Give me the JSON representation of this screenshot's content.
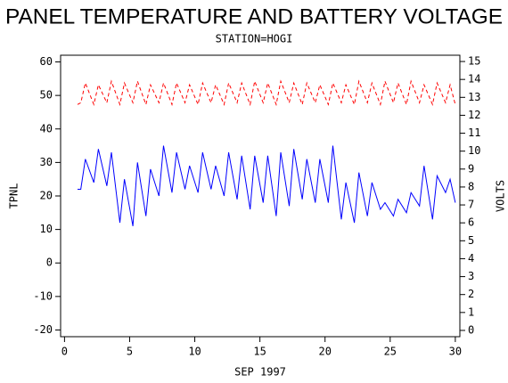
{
  "chart_data": {
    "type": "line",
    "title": "PANEL TEMPERATURE AND BATTERY VOLTAGE",
    "subtitle": "STATION=HOGI",
    "x_label": "SEP 1997",
    "y_label": "TPNL",
    "y2_label": "VOLTS",
    "x": [
      1,
      1.25,
      1.6,
      2.25,
      2.6,
      3.25,
      3.6,
      4.25,
      4.6,
      5.25,
      5.6,
      6.25,
      6.6,
      7.25,
      7.6,
      8.25,
      8.6,
      9.25,
      9.6,
      10.25,
      10.6,
      11.25,
      11.6,
      12.25,
      12.6,
      13.25,
      13.6,
      14.25,
      14.6,
      15.25,
      15.6,
      16.25,
      16.6,
      17.25,
      17.6,
      18.25,
      18.6,
      19.25,
      19.6,
      20.25,
      20.6,
      21.25,
      21.6,
      22.25,
      22.6,
      23.25,
      23.6,
      24.25,
      24.6,
      25.25,
      25.6,
      26.25,
      26.6,
      27.25,
      27.6,
      28.25,
      28.6,
      29.25,
      29.6,
      30
    ],
    "series": [
      {
        "name": "TPNL",
        "color": "#0000ff",
        "dashed": false,
        "axis": "y",
        "values": [
          22,
          22,
          31,
          24,
          34,
          23,
          33,
          12,
          25,
          11,
          30,
          14,
          28,
          20,
          35,
          21,
          33,
          22,
          29,
          21,
          33,
          22,
          29,
          20,
          33,
          19,
          32,
          16,
          32,
          18,
          32,
          14,
          33,
          17,
          34,
          19,
          31,
          18,
          31,
          18,
          35,
          13,
          24,
          12,
          27,
          14,
          24,
          16,
          18,
          14,
          19,
          15,
          21,
          17,
          29,
          13,
          26,
          21,
          25,
          18
        ]
      },
      {
        "name": "VOLTS",
        "color": "#ff0000",
        "dashed": true,
        "axis": "y2",
        "values": [
          12.6,
          12.7,
          13.8,
          12.6,
          13.7,
          12.7,
          13.9,
          12.6,
          13.8,
          12.7,
          13.9,
          12.6,
          13.7,
          12.7,
          13.8,
          12.6,
          13.8,
          12.7,
          13.7,
          12.6,
          13.8,
          12.7,
          13.7,
          12.6,
          13.8,
          12.7,
          13.8,
          12.6,
          13.9,
          12.7,
          13.8,
          12.6,
          13.9,
          12.7,
          13.8,
          12.6,
          13.8,
          12.7,
          13.7,
          12.6,
          13.8,
          12.7,
          13.7,
          12.6,
          13.9,
          12.7,
          13.8,
          12.6,
          13.9,
          12.7,
          13.8,
          12.6,
          13.9,
          12.7,
          13.7,
          12.6,
          13.8,
          12.7,
          13.7,
          12.6
        ]
      }
    ],
    "xlim": [
      -0.3,
      30.35
    ],
    "xticks": [
      0,
      5,
      10,
      15,
      20,
      25,
      30
    ],
    "ylim": [
      -22,
      62
    ],
    "yticks": [
      -20,
      -10,
      0,
      10,
      20,
      30,
      40,
      50,
      60
    ],
    "y2lim": [
      -0.35,
      15.35
    ],
    "y2ticks": [
      0,
      1,
      2,
      3,
      4,
      5,
      6,
      7,
      8,
      9,
      10,
      11,
      12,
      13,
      14,
      15
    ],
    "grid": false
  }
}
